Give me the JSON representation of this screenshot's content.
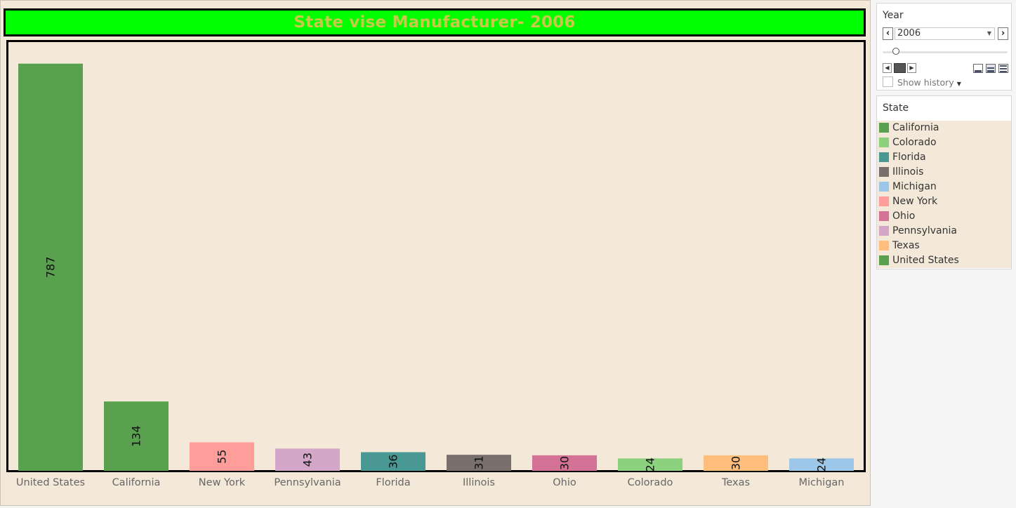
{
  "title": "State vise Manufacturer- 2006",
  "chart_data": {
    "type": "bar",
    "categories": [
      "United States",
      "California",
      "New York",
      "Pennsylvania",
      "Florida",
      "Illinois",
      "Ohio",
      "Colorado",
      "Texas",
      "Michigan"
    ],
    "values": [
      787,
      134,
      55,
      43,
      36,
      31,
      30,
      24,
      30,
      24
    ],
    "colors": [
      "#59a14f",
      "#59a14f",
      "#ff9d9a",
      "#d4a6c8",
      "#499894",
      "#79706e",
      "#d37295",
      "#8cd17d",
      "#ffbe7d",
      "#9dc7e8"
    ],
    "ylim": [
      0,
      830
    ],
    "grid": false,
    "legend_position": "right"
  },
  "filter": {
    "title": "Year",
    "selected": "2006",
    "prev_icon": "chevron-left-icon",
    "next_icon": "chevron-right-icon",
    "show_history_label": "Show history"
  },
  "legend": {
    "title": "State",
    "items": [
      {
        "label": "California",
        "color": "#59a14f"
      },
      {
        "label": "Colorado",
        "color": "#8cd17d"
      },
      {
        "label": "Florida",
        "color": "#499894"
      },
      {
        "label": "Illinois",
        "color": "#79706e"
      },
      {
        "label": "Michigan",
        "color": "#9dc7e8"
      },
      {
        "label": "New York",
        "color": "#ff9d9a"
      },
      {
        "label": "Ohio",
        "color": "#d37295"
      },
      {
        "label": "Pennsylvania",
        "color": "#d4a6c8"
      },
      {
        "label": "Texas",
        "color": "#ffbe7d"
      },
      {
        "label": "United States",
        "color": "#59a14f"
      }
    ]
  }
}
